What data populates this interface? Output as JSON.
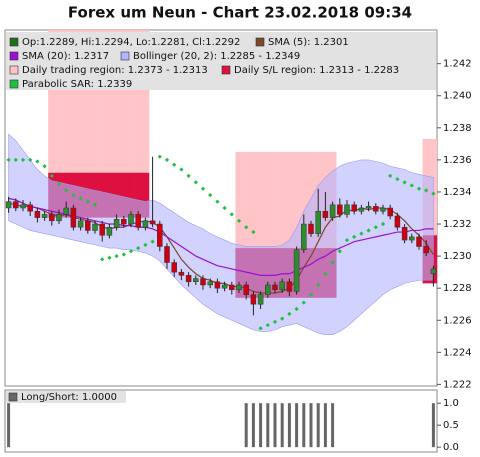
{
  "chart_data": [
    {
      "type": "candlestick",
      "title": "Forex um Neun - Chart 23.02.2018 09:34",
      "ylim": [
        1.2219,
        1.2441
      ],
      "yticks": [
        1.222,
        1.224,
        1.226,
        1.228,
        {
          "value": 1.23,
          "label": "1.230"
        },
        1.232,
        1.234,
        1.236,
        1.238,
        {
          "value": 1.24,
          "label": "1.240"
        },
        1.242
      ],
      "candles": {
        "name": "Op:1.2289, Hi:1.2294, Lo:1.2281, Cl:1.2292",
        "color": "#1f6f1f",
        "up_color": "#2e8b2e",
        "down_color": "#cc0011",
        "open": [
          1.233,
          1.2334,
          1.233,
          1.2332,
          1.2328,
          1.2324,
          1.2326,
          1.2322,
          1.2326,
          1.233,
          1.2318,
          1.2322,
          1.2316,
          1.232,
          1.2313,
          1.2318,
          1.2323,
          1.232,
          1.2326,
          1.2318,
          1.2322,
          1.232,
          1.2306,
          1.2296,
          1.229,
          1.2288,
          1.2284,
          1.2286,
          1.2282,
          1.2284,
          1.228,
          1.2282,
          1.2279,
          1.2282,
          1.2276,
          1.227,
          1.2276,
          1.2282,
          1.2279,
          1.2284,
          1.2278,
          1.2304,
          1.232,
          1.2314,
          1.2328,
          1.2324,
          1.2332,
          1.2326,
          1.2332,
          1.2328,
          1.233,
          1.2331,
          1.2328,
          1.233,
          1.2325,
          1.2318,
          1.231,
          1.2312,
          1.2306,
          1.2289
        ],
        "high": [
          1.2337,
          1.2336,
          1.2335,
          1.2334,
          1.233,
          1.2328,
          1.2328,
          1.2329,
          1.2334,
          1.2332,
          1.2324,
          1.2324,
          1.2322,
          1.2322,
          1.232,
          1.2326,
          1.2325,
          1.2328,
          1.2328,
          1.2324,
          1.2362,
          1.2322,
          1.2308,
          1.2298,
          1.2292,
          1.229,
          1.2288,
          1.2288,
          1.2286,
          1.2286,
          1.2284,
          1.2284,
          1.2284,
          1.2284,
          1.2278,
          1.2278,
          1.2284,
          1.2284,
          1.2286,
          1.2286,
          1.2306,
          1.2326,
          1.2322,
          1.2342,
          1.234,
          1.2334,
          1.2336,
          1.2335,
          1.2334,
          1.2332,
          1.2334,
          1.2333,
          1.2332,
          1.2332,
          1.2327,
          1.232,
          1.2314,
          1.2314,
          1.231,
          1.2294
        ],
        "low": [
          1.2327,
          1.2328,
          1.2328,
          1.2325,
          1.2321,
          1.2322,
          1.2319,
          1.232,
          1.2324,
          1.2316,
          1.2316,
          1.2314,
          1.2314,
          1.2309,
          1.2311,
          1.2316,
          1.2318,
          1.2318,
          1.2316,
          1.2316,
          1.2318,
          1.2303,
          1.2292,
          1.2287,
          1.2285,
          1.2281,
          1.2282,
          1.2279,
          1.228,
          1.2277,
          1.2278,
          1.2276,
          1.2277,
          1.2273,
          1.2263,
          1.2267,
          1.2274,
          1.2277,
          1.2277,
          1.2275,
          1.2276,
          1.2302,
          1.2312,
          1.2312,
          1.2322,
          1.2322,
          1.2324,
          1.2324,
          1.2326,
          1.2326,
          1.2328,
          1.2326,
          1.2326,
          1.2323,
          1.2316,
          1.2308,
          1.2308,
          1.2304,
          1.23,
          1.2281
        ],
        "close": [
          1.2334,
          1.233,
          1.2332,
          1.2328,
          1.2324,
          1.2326,
          1.2322,
          1.2326,
          1.233,
          1.2318,
          1.2322,
          1.2316,
          1.232,
          1.2313,
          1.2318,
          1.2323,
          1.232,
          1.2326,
          1.2318,
          1.2322,
          1.232,
          1.2306,
          1.2296,
          1.229,
          1.2288,
          1.2284,
          1.2286,
          1.2282,
          1.2284,
          1.228,
          1.2282,
          1.2279,
          1.2282,
          1.2276,
          1.227,
          1.2276,
          1.2282,
          1.2279,
          1.2284,
          1.2278,
          1.2304,
          1.232,
          1.2314,
          1.2328,
          1.2324,
          1.2332,
          1.2326,
          1.2332,
          1.2328,
          1.233,
          1.2331,
          1.2328,
          1.233,
          1.2325,
          1.2318,
          1.231,
          1.2312,
          1.2306,
          1.2302,
          1.2292
        ]
      },
      "regions": [
        {
          "name": "Daily trading region: 1.2373 - 1.2313",
          "color": "#ffc4c8",
          "upper": [
            null,
            null,
            null,
            null,
            null,
            null,
            1.2441,
            1.2441,
            1.2441,
            1.2441,
            1.2441,
            1.2441,
            1.2441,
            1.2441,
            1.2441,
            1.2441,
            1.2441,
            1.2441,
            1.2441,
            1.2441,
            null,
            null,
            null,
            null,
            null,
            null,
            null,
            null,
            null,
            null,
            null,
            null,
            1.2365,
            1.2365,
            1.2365,
            1.2365,
            1.2365,
            1.2365,
            1.2365,
            1.2365,
            1.2365,
            1.2365,
            1.2365,
            1.2365,
            1.2365,
            1.2365,
            null,
            null,
            null,
            null,
            null,
            null,
            null,
            null,
            null,
            null,
            null,
            null,
            1.2373,
            1.2373
          ],
          "lower": [
            null,
            null,
            null,
            null,
            null,
            null,
            1.2352,
            1.2352,
            1.2352,
            1.2352,
            1.2352,
            1.2352,
            1.2352,
            1.2352,
            1.2352,
            1.2352,
            1.2352,
            1.2352,
            1.2352,
            1.2352,
            null,
            null,
            null,
            null,
            null,
            null,
            null,
            null,
            null,
            null,
            null,
            null,
            1.2305,
            1.2305,
            1.2305,
            1.2305,
            1.2305,
            1.2305,
            1.2305,
            1.2305,
            1.2305,
            1.2305,
            1.2305,
            1.2305,
            1.2305,
            1.2305,
            null,
            null,
            null,
            null,
            null,
            null,
            null,
            null,
            null,
            null,
            null,
            null,
            1.2313,
            1.2313
          ]
        },
        {
          "name": "Daily S/L region: 1.2313 - 1.2283",
          "color": "#dd1040",
          "upper": [
            null,
            null,
            null,
            null,
            null,
            null,
            1.2352,
            1.2352,
            1.2352,
            1.2352,
            1.2352,
            1.2352,
            1.2352,
            1.2352,
            1.2352,
            1.2352,
            1.2352,
            1.2352,
            1.2352,
            1.2352,
            null,
            null,
            null,
            null,
            null,
            null,
            null,
            null,
            null,
            null,
            null,
            null,
            1.2305,
            1.2305,
            1.2305,
            1.2305,
            1.2305,
            1.2305,
            1.2305,
            1.2305,
            1.2305,
            1.2305,
            1.2305,
            1.2305,
            1.2305,
            1.2305,
            null,
            null,
            null,
            null,
            null,
            null,
            null,
            null,
            null,
            null,
            null,
            null,
            1.2313,
            1.2313
          ],
          "lower": [
            null,
            null,
            null,
            null,
            null,
            null,
            1.2324,
            1.2324,
            1.2324,
            1.2324,
            1.2324,
            1.2324,
            1.2324,
            1.2324,
            1.2324,
            1.2324,
            1.2324,
            1.2324,
            1.2324,
            1.2324,
            null,
            null,
            null,
            null,
            null,
            null,
            null,
            null,
            null,
            null,
            null,
            null,
            1.2274,
            1.2274,
            1.2274,
            1.2274,
            1.2274,
            1.2274,
            1.2274,
            1.2274,
            1.2274,
            1.2274,
            1.2274,
            1.2274,
            1.2274,
            1.2274,
            null,
            null,
            null,
            null,
            null,
            null,
            null,
            null,
            null,
            null,
            null,
            null,
            1.2283,
            1.2283
          ]
        }
      ],
      "bollinger": {
        "name": "Bollinger (20, 2): 1.2285 - 1.2349",
        "color": "#b4b4ff",
        "upper": [
          1.2376,
          1.2372,
          1.2366,
          1.236,
          1.2354,
          1.235,
          1.2347,
          1.2346,
          1.2345,
          1.2344,
          1.2343,
          1.2342,
          1.2341,
          1.234,
          1.2339,
          1.2338,
          1.2337,
          1.2336,
          1.2335,
          1.2334,
          1.2335,
          1.2333,
          1.233,
          1.2327,
          1.2324,
          1.2321,
          1.2319,
          1.2317,
          1.2314,
          1.2312,
          1.231,
          1.2308,
          1.2307,
          1.2306,
          1.2306,
          1.2306,
          1.2306,
          1.2306,
          1.2307,
          1.231,
          1.2318,
          1.2328,
          1.2336,
          1.2344,
          1.2349,
          1.2353,
          1.2356,
          1.2358,
          1.2359,
          1.236,
          1.236,
          1.2359,
          1.2358,
          1.2356,
          1.2355,
          1.2354,
          1.2352,
          1.2351,
          1.235,
          1.2349
        ],
        "lower": [
          1.2322,
          1.232,
          1.2318,
          1.2316,
          1.2315,
          1.2314,
          1.2313,
          1.2312,
          1.2311,
          1.231,
          1.2309,
          1.2308,
          1.2307,
          1.2306,
          1.2305,
          1.2305,
          1.2304,
          1.2304,
          1.2303,
          1.2302,
          1.23,
          1.2297,
          1.2292,
          1.2287,
          1.2282,
          1.2278,
          1.2274,
          1.227,
          1.2267,
          1.2264,
          1.2262,
          1.226,
          1.2258,
          1.2256,
          1.2254,
          1.2253,
          1.2253,
          1.2254,
          1.2256,
          1.2257,
          1.2258,
          1.2256,
          1.2254,
          1.2252,
          1.2251,
          1.2251,
          1.2253,
          1.2256,
          1.226,
          1.2264,
          1.2268,
          1.2272,
          1.2276,
          1.2279,
          1.2281,
          1.2283,
          1.2284,
          1.2285,
          1.2285,
          1.2285
        ]
      },
      "lines": [
        {
          "name": "SMA (5): 1.2301",
          "color": "#7a4a2a",
          "values": [
            1.2333,
            1.2332,
            1.2331,
            1.2331,
            1.233,
            1.2328,
            1.2326,
            1.2325,
            1.2326,
            1.2324,
            1.2323,
            1.2322,
            1.2321,
            1.2318,
            1.2317,
            1.2318,
            1.2318,
            1.232,
            1.2321,
            1.2322,
            1.2321,
            1.2318,
            1.2312,
            1.2305,
            1.2298,
            1.2293,
            1.2289,
            1.2286,
            1.2285,
            1.2283,
            1.2283,
            1.2281,
            1.2281,
            1.228,
            1.2278,
            1.2277,
            1.2277,
            1.2277,
            1.2278,
            1.228,
            1.2285,
            1.2293,
            1.23,
            1.2309,
            1.2318,
            1.2324,
            1.2325,
            1.2329,
            1.2328,
            1.233,
            1.2329,
            1.233,
            1.233,
            1.2329,
            1.2326,
            1.2322,
            1.2317,
            1.2313,
            1.2308,
            1.2301
          ]
        },
        {
          "name": "SMA (20): 1.2317",
          "color": "#9a10d0",
          "values": [
            1.2336,
            1.2335,
            1.2333,
            1.2331,
            1.233,
            1.2329,
            1.2328,
            1.2327,
            1.2326,
            1.2325,
            1.2324,
            1.2323,
            1.2322,
            1.2321,
            1.232,
            1.232,
            1.2319,
            1.2319,
            1.2318,
            1.2318,
            1.2317,
            1.2315,
            1.2312,
            1.2309,
            1.2306,
            1.2303,
            1.23,
            1.2298,
            1.2296,
            1.2294,
            1.2293,
            1.2292,
            1.2291,
            1.229,
            1.2289,
            1.2288,
            1.2288,
            1.2288,
            1.2289,
            1.2289,
            1.2291,
            1.2293,
            1.2295,
            1.2298,
            1.23,
            1.2303,
            1.2305,
            1.2307,
            1.2309,
            1.231,
            1.2311,
            1.2312,
            1.2313,
            1.2314,
            1.2315,
            1.2315,
            1.2316,
            1.2316,
            1.2317,
            1.2317
          ]
        }
      ],
      "sar": {
        "name": "Parabolic SAR: 1.2339",
        "color": "#1fc040",
        "values": [
          1.236,
          1.236,
          1.236,
          1.236,
          1.2359,
          1.2356,
          1.235,
          1.2345,
          1.2341,
          1.2338,
          1.2336,
          1.2334,
          1.2332,
          1.2298,
          1.2299,
          1.23,
          1.2301,
          1.2303,
          1.2305,
          1.2307,
          1.2309,
          1.2362,
          1.236,
          1.2357,
          1.2354,
          1.235,
          1.2346,
          1.2342,
          1.2338,
          1.2334,
          1.233,
          1.2326,
          1.2322,
          1.2318,
          1.2315,
          1.2255,
          1.2257,
          1.2259,
          1.2261,
          1.2264,
          1.2267,
          1.2271,
          1.2276,
          1.2282,
          1.2289,
          1.2296,
          1.2303,
          1.231,
          1.2312,
          1.2314,
          1.2316,
          1.2318,
          1.232,
          1.235,
          1.2348,
          1.2346,
          1.2344,
          1.2342,
          1.2341,
          1.2339
        ]
      }
    },
    {
      "type": "bar",
      "ylim": [
        -0.11,
        1.3
      ],
      "yticks": [
        {
          "value": 0,
          "label": "0.0"
        },
        {
          "value": 0.5,
          "label": "0.5"
        },
        {
          "value": 1,
          "label": "1.0"
        }
      ],
      "series": [
        {
          "name": "Long/Short: 1.0000",
          "color": "#666666",
          "values": [
            1,
            0,
            0,
            0,
            0,
            0,
            0,
            0,
            0,
            0,
            0,
            0,
            0,
            0,
            0,
            0,
            0,
            0,
            0,
            0,
            0,
            0,
            0,
            0,
            0,
            0,
            0,
            0,
            0,
            0,
            0,
            0,
            0,
            1,
            1,
            1,
            1,
            1,
            1,
            1,
            1,
            1,
            1,
            1,
            1,
            1,
            0,
            0,
            0,
            0,
            0,
            0,
            0,
            0,
            0,
            0,
            0,
            0,
            0,
            1
          ]
        }
      ]
    }
  ]
}
